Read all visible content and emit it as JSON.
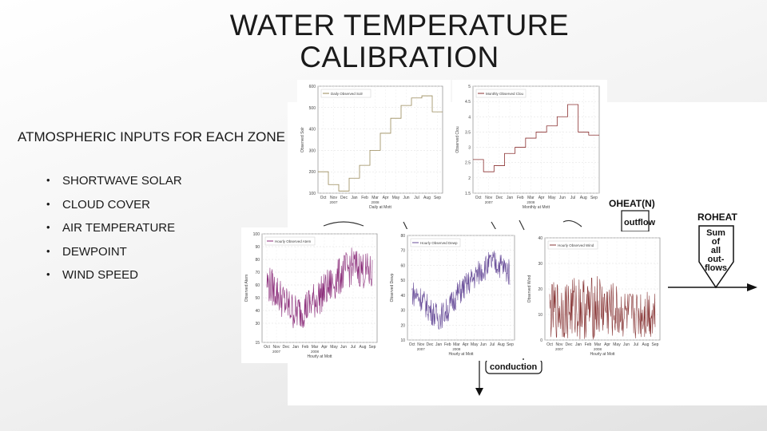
{
  "slide": {
    "title_line1": "WATER TEMPERATURE",
    "title_line2": "CALIBRATION",
    "subhead": "ATMOSPHERIC INPUTS FOR EACH ZONE",
    "bullets": [
      "SHORTWAVE SOLAR",
      "CLOUD COVER",
      "AIR TEMPERATURE",
      "DEWPOINT",
      "WIND SPEED"
    ]
  },
  "diagram": {
    "oheat_label": "OHEAT(N)",
    "outflow_label": "outflow",
    "roheat_label": "ROHEAT",
    "roheat_box": [
      "Sum",
      "of",
      "all",
      "out-",
      "flows"
    ],
    "conduction_label": "conduction"
  },
  "colors": {
    "solar": "#9a8a5a",
    "cloud": "#8a3030",
    "air": "#8b2d7a",
    "dew": "#6a4f9a",
    "wind": "#8a3a3a"
  },
  "chart_data": [
    {
      "type": "line",
      "legend": "Daily Observed Solr",
      "ylabel": "Observed Solr",
      "xlabel": "Daily at Mott",
      "ylim": [
        100,
        600
      ],
      "yticks": [
        "100",
        "200",
        "300",
        "400",
        "500",
        "600"
      ],
      "xticks": [
        "Oct",
        "Nov",
        "Dec",
        "Jan",
        "Feb",
        "Mar",
        "Apr",
        "May",
        "Jun",
        "Jul",
        "Aug",
        "Sep"
      ],
      "years": [
        "2007",
        "2008"
      ],
      "values": [
        200,
        140,
        110,
        170,
        230,
        300,
        380,
        450,
        510,
        545,
        555,
        480
      ]
    },
    {
      "type": "line",
      "legend": "Monthly Observed Clou",
      "ylabel": "Observed Clou",
      "xlabel": "Monthly at Mott",
      "ylim": [
        1.5,
        5
      ],
      "yticks": [
        "1.5",
        "2",
        "2.5",
        "3",
        "3.5",
        "4",
        "4.5",
        "5"
      ],
      "xticks": [
        "Oct",
        "Nov",
        "Dec",
        "Jan",
        "Feb",
        "Mar",
        "Apr",
        "May",
        "Jun",
        "Jul",
        "Aug",
        "Sep"
      ],
      "years": [
        "2007",
        "2008"
      ],
      "values": [
        2.6,
        2.2,
        2.4,
        2.8,
        3.0,
        3.3,
        3.5,
        3.7,
        4.0,
        4.4,
        3.5,
        3.4
      ]
    },
    {
      "type": "line",
      "legend": "Hourly Observed Atem",
      "ylabel": "Observed Atem",
      "xlabel": "Hourly at Mott",
      "ylim": [
        15,
        100
      ],
      "yticks": [
        "15",
        "30",
        "40",
        "50",
        "60",
        "70",
        "80",
        "90",
        "100"
      ],
      "xticks": [
        "Oct",
        "Nov",
        "Dec",
        "Jan",
        "Feb",
        "Mar",
        "Apr",
        "May",
        "Jun",
        "Jul",
        "Aug",
        "Sep"
      ],
      "years": [
        "2007",
        "2008"
      ],
      "values": [
        62,
        55,
        45,
        38,
        42,
        48,
        55,
        62,
        70,
        75,
        72,
        68
      ]
    },
    {
      "type": "line",
      "legend": "Hourly Observed Dewp",
      "ylabel": "Observed Dewp",
      "xlabel": "Hourly at Mott",
      "ylim": [
        10,
        80
      ],
      "yticks": [
        "10",
        "20",
        "30",
        "40",
        "50",
        "60",
        "70",
        "80"
      ],
      "xticks": [
        "Oct",
        "Nov",
        "Dec",
        "Jan",
        "Feb",
        "Mar",
        "Apr",
        "May",
        "Jun",
        "Jul",
        "Aug",
        "Sep"
      ],
      "years": [
        "2007",
        "2008"
      ],
      "values": [
        42,
        38,
        30,
        25,
        30,
        40,
        46,
        52,
        58,
        62,
        60,
        55
      ]
    },
    {
      "type": "line",
      "legend": "Hourly Observed Wind",
      "ylabel": "Observed Wind",
      "xlabel": "Hourly at Mott",
      "ylim": [
        0,
        40
      ],
      "yticks": [
        "0",
        "10",
        "20",
        "30",
        "40"
      ],
      "xticks": [
        "Oct",
        "Nov",
        "Dec",
        "Jan",
        "Feb",
        "Mar",
        "Apr",
        "May",
        "Jun",
        "Jul",
        "Aug",
        "Sep"
      ],
      "years": [
        "2007",
        "2008"
      ],
      "values": [
        9,
        10,
        10,
        11,
        10,
        11,
        10,
        9,
        8,
        8,
        9,
        9
      ]
    }
  ]
}
